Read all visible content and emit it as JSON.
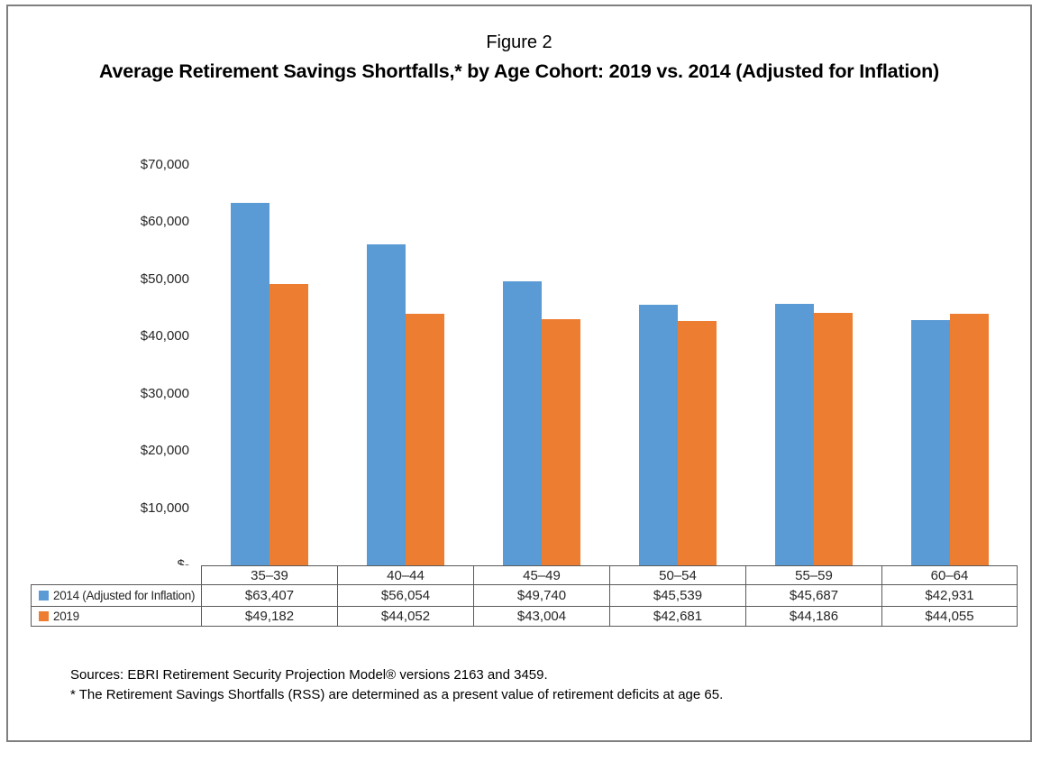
{
  "figure": {
    "title": "Figure 2",
    "subtitle": "Average Retirement Savings Shortfalls,* by Age Cohort: 2019 vs. 2014 (Adjusted for Inflation)"
  },
  "chart_data": {
    "type": "bar",
    "categories": [
      "35–39",
      "40–44",
      "45–49",
      "50–54",
      "55–59",
      "60–64"
    ],
    "series": [
      {
        "name": "2014 (Adjusted for Inflation)",
        "color": "#5B9BD5",
        "values": [
          63407,
          56054,
          49740,
          45539,
          45687,
          42931
        ],
        "labels": [
          "$63,407",
          "$56,054",
          "$49,740",
          "$45,539",
          "$45,687",
          "$42,931"
        ]
      },
      {
        "name": "2019",
        "color": "#ED7D31",
        "values": [
          49182,
          44052,
          43004,
          42681,
          44186,
          44055
        ],
        "labels": [
          "$49,182",
          "$44,052",
          "$43,004",
          "$42,681",
          "$44,186",
          "$44,055"
        ]
      }
    ],
    "y_axis": {
      "tick_labels": [
        "$70,000",
        "$60,000",
        "$50,000",
        "$40,000",
        "$30,000",
        "$20,000",
        "$10,000",
        "$-"
      ],
      "tick_values": [
        70000,
        60000,
        50000,
        40000,
        30000,
        20000,
        10000,
        0
      ],
      "min": 0,
      "max": 70000
    },
    "grid": false,
    "legend_position": "table-left",
    "title": "Average Retirement Savings Shortfalls,* by Age Cohort: 2019 vs. 2014 (Adjusted for Inflation)",
    "xlabel": "",
    "ylabel": ""
  },
  "footnotes": {
    "sources": "Sources: EBRI Retirement Security Projection Model® versions 2163 and 3459.",
    "note": "* The Retirement Savings Shortfalls (RSS) are determined as a present value of retirement deficits at age 65."
  }
}
